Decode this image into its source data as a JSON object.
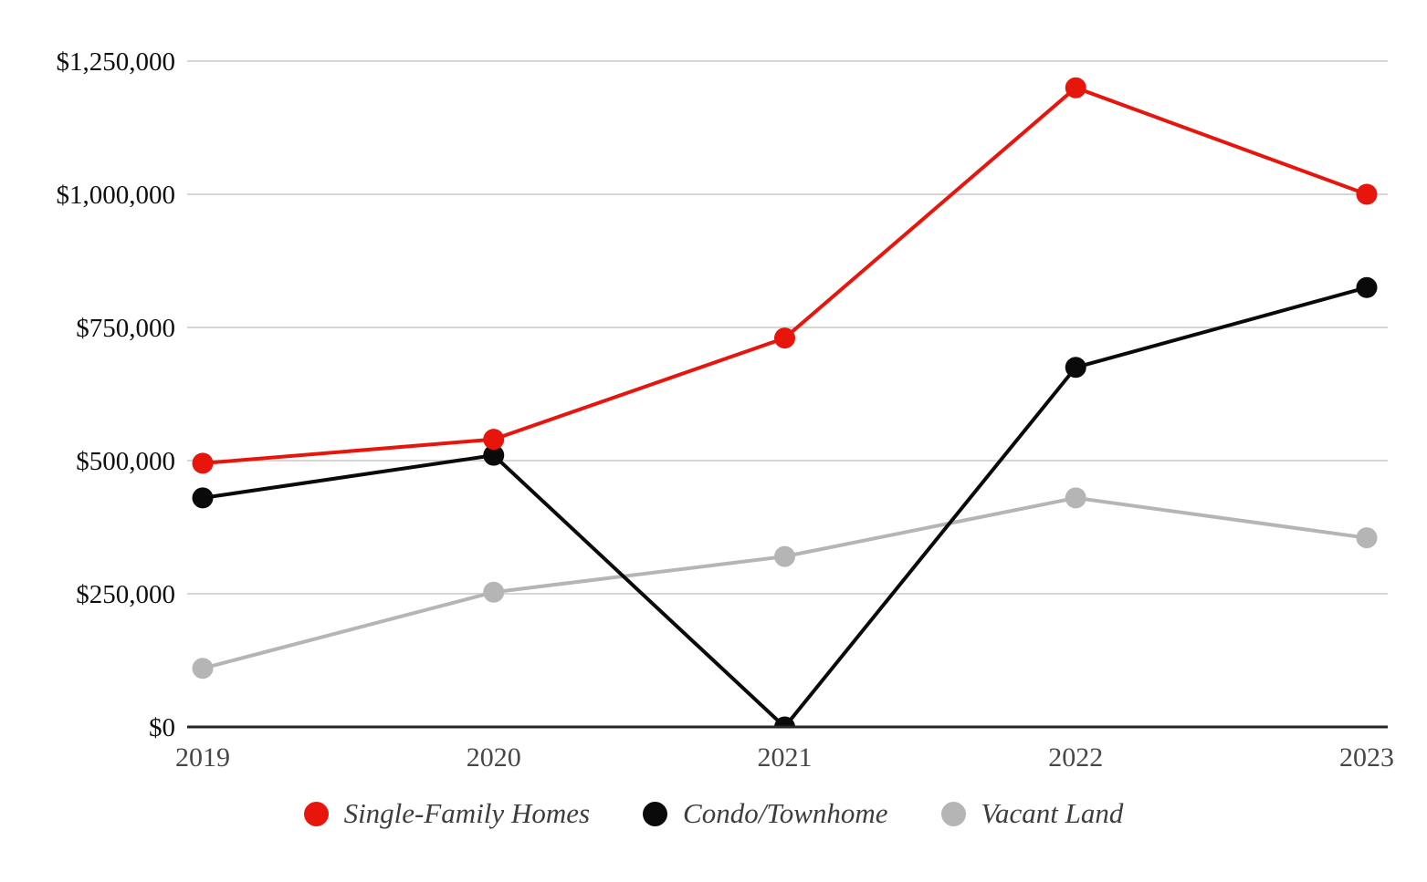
{
  "chart_data": {
    "type": "line",
    "title": "",
    "xlabel": "",
    "ylabel": "",
    "categories": [
      "2019",
      "2020",
      "2021",
      "2022",
      "2023"
    ],
    "series": [
      {
        "name": "Single-Family Homes",
        "color": "#e8150d",
        "values": [
          495000,
          540000,
          730000,
          1200000,
          1000000
        ]
      },
      {
        "name": "Condo/Townhome",
        "color": "#0a0a0a",
        "values": [
          430000,
          510000,
          0,
          675000,
          825000
        ]
      },
      {
        "name": "Vacant Land",
        "color": "#b5b5b5",
        "values": [
          110000,
          253000,
          320000,
          430000,
          355000
        ]
      }
    ],
    "ylim": [
      0,
      1250000
    ],
    "ytick_values": [
      0,
      250000,
      500000,
      750000,
      1000000,
      1250000
    ],
    "ytick_labels": [
      "$0",
      "$250,000",
      "$500,000",
      "$750,000",
      "$1,000,000",
      "$1,250,000"
    ],
    "grid": "horizontal",
    "legend_position": "bottom"
  },
  "style": {
    "background": "#ffffff",
    "gridline_color": "#d6d6d6",
    "axis_color": "#262626",
    "ytick_label_color": "#0f0f0f",
    "xtick_label_color": "#474747",
    "legend_text_color": "#3d3d3d"
  }
}
